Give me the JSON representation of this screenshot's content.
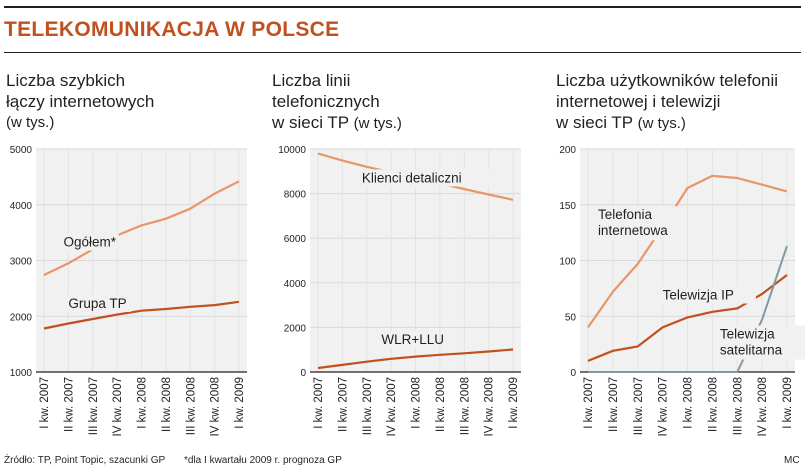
{
  "header": {
    "title": "TELEKOMUNIKACJA W POLSCE"
  },
  "colors": {
    "title": "#c1501f",
    "line_light": "#e8956a",
    "line_dark": "#c0501e",
    "line_grey": "#7f9aa3",
    "plot_bg": "#f1f1f1",
    "grid": "#d9d9d9"
  },
  "panels": [
    {
      "title_line1": "Liczba szybkich",
      "title_line2": "łączy internetowych",
      "title_line3": "",
      "unit": "(w tys.)"
    },
    {
      "title_line1": "Liczba linii",
      "title_line2": "telefonicznych",
      "title_line3": "w sieci TP",
      "unit": "(w tys.)"
    },
    {
      "title_line1": "Liczba użytkowników telefonii",
      "title_line2": "internetowej i telewizji",
      "title_line3": "w sieci TP",
      "unit": "(w tys.)"
    }
  ],
  "footer": {
    "source": "Źródło: TP, Point Topic, szacunki GP",
    "note": "*dla I kwartału 2009 r. prognoza GP",
    "author": "MC"
  },
  "chart_data": [
    {
      "type": "line",
      "title": "Liczba szybkich łączy internetowych (w tys.)",
      "categories": [
        "I kw. 2007",
        "II kw. 2007",
        "III kw. 2007",
        "IV kw. 2007",
        "I kw. 2008",
        "II kw. 2008",
        "III kw. 2008",
        "IV kw. 2008",
        "I kw. 2009"
      ],
      "ylim": [
        1000,
        5000
      ],
      "yticks": [
        1000,
        2000,
        3000,
        4000,
        5000
      ],
      "grid": true,
      "series": [
        {
          "name": "Ogółem*",
          "color": "light",
          "values": [
            2740,
            2950,
            3200,
            3450,
            3630,
            3750,
            3930,
            4200,
            4420
          ]
        },
        {
          "name": "Grupa TP",
          "color": "dark",
          "values": [
            1780,
            1870,
            1950,
            2030,
            2100,
            2130,
            2170,
            2200,
            2260
          ]
        }
      ]
    },
    {
      "type": "line",
      "title": "Liczba linii telefonicznych w sieci TP (w tys.)",
      "categories": [
        "I kw. 2007",
        "II kw. 2007",
        "III kw. 2007",
        "IV kw. 2007",
        "I kw. 2008",
        "II kw. 2008",
        "III kw. 2008",
        "IV kw. 2008",
        "I kw. 2009"
      ],
      "ylim": [
        0,
        10000
      ],
      "yticks": [
        0,
        2000,
        4000,
        6000,
        8000,
        10000
      ],
      "grid": true,
      "series": [
        {
          "name": "Klienci detaliczni",
          "color": "light",
          "values": [
            9800,
            9480,
            9200,
            8950,
            8700,
            8450,
            8200,
            7960,
            7720
          ]
        },
        {
          "name": "WLR+LLU",
          "color": "dark",
          "values": [
            180,
            320,
            460,
            590,
            690,
            770,
            840,
            920,
            1010
          ]
        }
      ]
    },
    {
      "type": "line",
      "title": "Liczba użytkowników telefonii internetowej i telewizji w sieci TP (w tys.)",
      "categories": [
        "I kw. 2007",
        "II kw. 2007",
        "III kw. 2007",
        "IV kw. 2007",
        "I kw. 2008",
        "II kw. 2008",
        "III kw. 2008",
        "IV kw. 2008",
        "I kw. 2009"
      ],
      "ylim": [
        0,
        200
      ],
      "yticks": [
        0,
        50,
        100,
        150,
        200
      ],
      "grid": true,
      "series": [
        {
          "name": "Telefonia internetowa",
          "color": "light",
          "values": [
            40,
            72,
            97,
            130,
            165,
            176,
            174,
            168,
            162
          ]
        },
        {
          "name": "Telewizja IP",
          "color": "dark",
          "values": [
            10,
            19,
            23,
            40,
            49,
            54,
            57,
            70,
            87
          ]
        },
        {
          "name": "Telewizja satelitarna",
          "color": "grey",
          "values": [
            0,
            0,
            0,
            0,
            0,
            0,
            0,
            47,
            113
          ]
        }
      ]
    }
  ]
}
